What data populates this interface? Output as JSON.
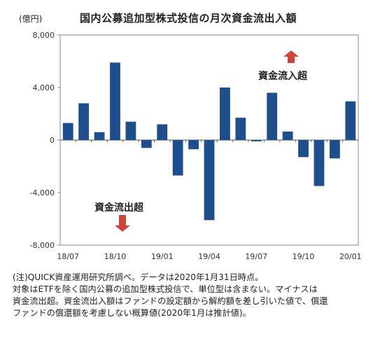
{
  "chart_data": {
    "type": "bar",
    "title": "国内公募追加型株式投信の月次資金流出入額",
    "unit_label": "(億円)",
    "categories": [
      "18/07",
      "18/08",
      "18/09",
      "18/10",
      "18/11",
      "18/12",
      "19/01",
      "19/02",
      "19/03",
      "19/04",
      "19/05",
      "19/06",
      "19/07",
      "19/08",
      "19/09",
      "19/10",
      "19/11",
      "19/12",
      "20/01"
    ],
    "x_tick_labels": [
      "18/07",
      "18/10",
      "19/01",
      "19/04",
      "19/07",
      "19/10",
      "20/01"
    ],
    "values": [
      1300,
      2800,
      600,
      5900,
      1400,
      -600,
      1200,
      -2700,
      -700,
      -6100,
      4000,
      1700,
      -100,
      3600,
      650,
      -1300,
      -3500,
      -1400,
      2950
    ],
    "ylim": [
      -8000,
      8000
    ],
    "y_ticks": [
      8000,
      4000,
      0,
      -4000,
      -8000
    ],
    "y_tick_labels": [
      "8,000",
      "4,000",
      "0",
      "-4,000",
      "-8,000"
    ],
    "grid": false,
    "bar_color": "#1f4e8c",
    "arrow_color": "#d0433d",
    "annotations": {
      "inflow": "資金流入超",
      "outflow": "資金流出超"
    }
  },
  "note_lines": [
    "(注)QUICK資産運用研究所調べ。データは2020年1月31日時点。",
    "対象はETFを除く国内公募の追加型株式投信で、単位型は含まない。マイナスは",
    "資金流出超。資金流出入額はファンドの設定額から解約額を差し引いた値で、償還",
    "ファンドの償還額を考慮しない概算値(2020年1月は推計値)。"
  ]
}
